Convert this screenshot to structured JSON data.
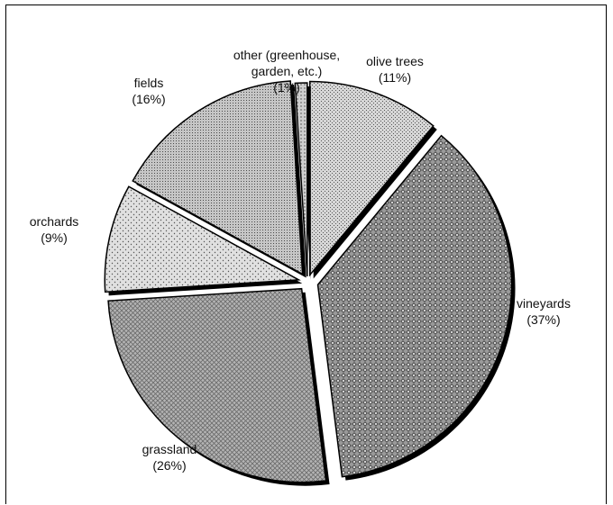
{
  "chart_data": {
    "type": "pie",
    "title": "",
    "legend": "none",
    "slices": [
      {
        "name": "olive trees",
        "percent_label": "(11%)",
        "value": 11,
        "fill": "#d2d2d2",
        "pattern": "fine-dots"
      },
      {
        "name": "vineyards",
        "percent_label": "(37%)",
        "value": 37,
        "fill": "#8a8a8a",
        "pattern": "diamond-check"
      },
      {
        "name": "grassland",
        "percent_label": "(26%)",
        "value": 26,
        "fill": "#a8a8a8",
        "pattern": "crosshatch"
      },
      {
        "name": "orchards",
        "percent_label": "(9%)",
        "value": 9,
        "fill": "#dcdcdc",
        "pattern": "sparse-dots"
      },
      {
        "name": "fields",
        "percent_label": "(16%)",
        "value": 16,
        "fill": "#bebebe",
        "pattern": "dense-dots"
      },
      {
        "name_lines": [
          "other (greenhouse,",
          "garden, etc.)"
        ],
        "percent_label": "(1%)",
        "value": 1,
        "fill": "#c8c8c8",
        "pattern": "small-dots"
      }
    ]
  }
}
